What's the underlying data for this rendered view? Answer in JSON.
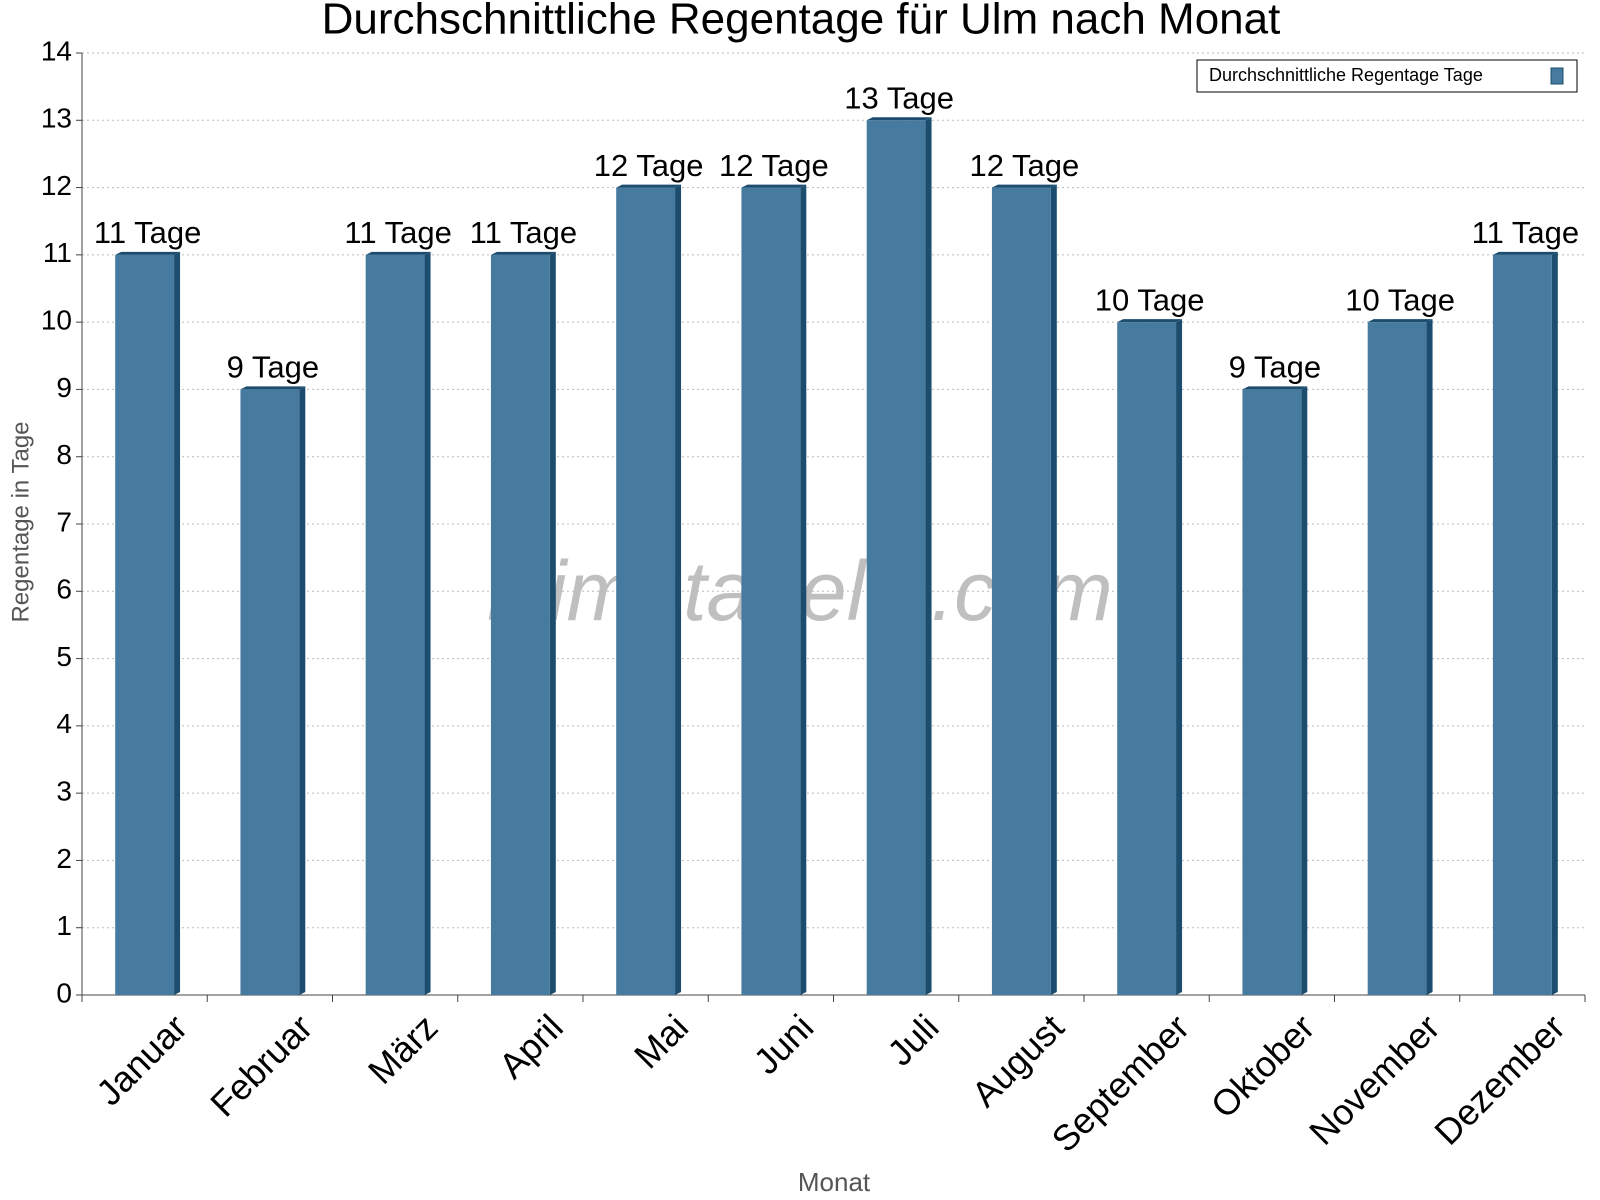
{
  "chart_data": {
    "type": "bar",
    "title": "Durchschnittliche Regentage für Ulm nach Monat",
    "watermark": "klimatabelle.com",
    "x_label": "Monat",
    "y_label": "Regentage in Tage",
    "categories": [
      "Januar",
      "Februar",
      "März",
      "April",
      "Mai",
      "Juni",
      "Juli",
      "August",
      "September",
      "Oktober",
      "November",
      "Dezember"
    ],
    "series": [
      {
        "name": "Durchschnittliche Regentage Tage",
        "color": "#467a9e",
        "values": [
          11,
          9,
          11,
          11,
          12,
          12,
          13,
          12,
          10,
          9,
          10,
          11
        ],
        "value_labels": [
          "11 Tage",
          "9 Tage",
          "11 Tage",
          "11 Tage",
          "12 Tage",
          "12 Tage",
          "13 Tage",
          "12 Tage",
          "10 Tage",
          "9 Tage",
          "10 Tage",
          "11 Tage"
        ]
      }
    ],
    "ylim": [
      0,
      14
    ],
    "yticks": [
      0,
      1,
      2,
      3,
      4,
      5,
      6,
      7,
      8,
      9,
      10,
      11,
      12,
      13,
      14
    ],
    "grid": true,
    "legend": "upper right"
  }
}
